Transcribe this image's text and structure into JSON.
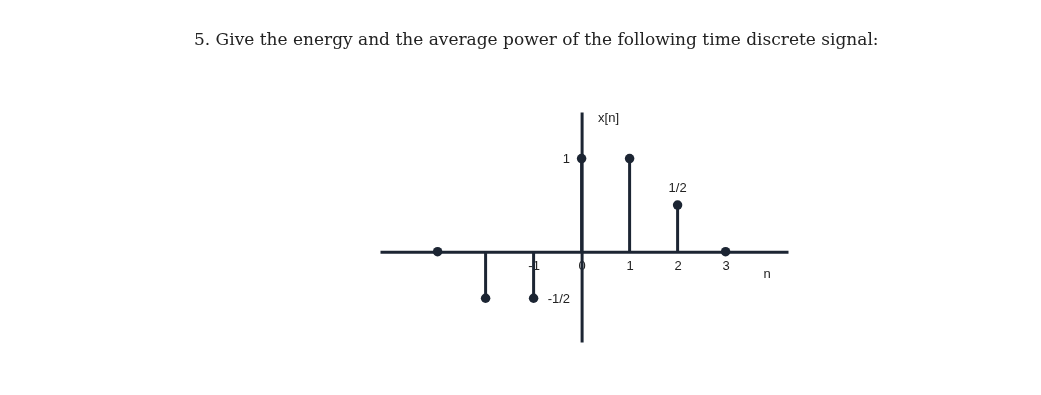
{
  "chart_data": {
    "type": "lollipop",
    "title": "5. Give the energy and the average power of the following time discrete signal:",
    "xlabel": "n",
    "ylabel": "x[n]",
    "x": [
      -3,
      -2,
      -1,
      0,
      1,
      2,
      3
    ],
    "values": [
      0,
      -0.5,
      -0.5,
      1,
      1,
      0.5,
      0
    ],
    "value_labels": [
      null,
      null,
      null,
      null,
      null,
      "1/2",
      null
    ],
    "color": "#1c2533",
    "xlim": [
      -4.2,
      4.3
    ],
    "ylim": [
      -0.97,
      1.5
    ],
    "xticks": [
      -1,
      0,
      1,
      2,
      3
    ],
    "yticks": [
      {
        "value": -0.5,
        "label": "-1/2"
      },
      1
    ],
    "grid": false,
    "marker": "circle"
  }
}
